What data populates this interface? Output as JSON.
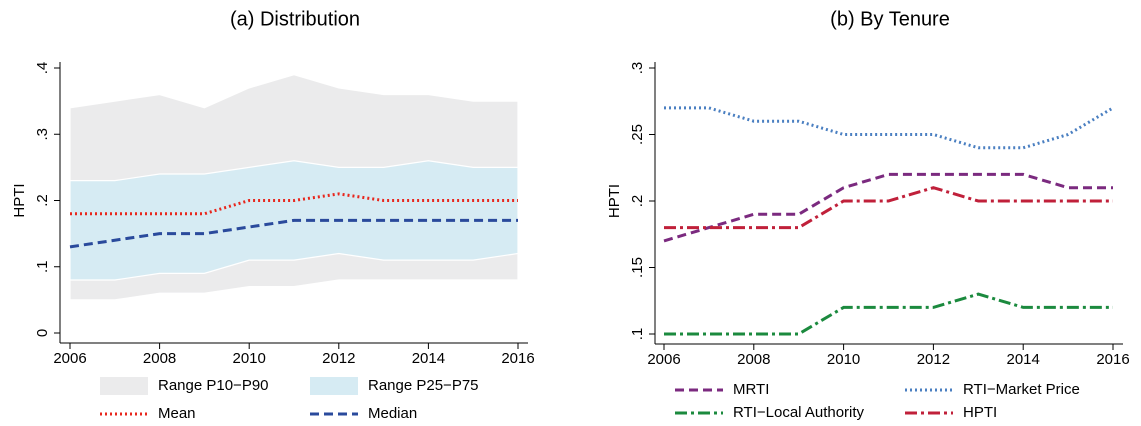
{
  "chart_data": [
    {
      "type": "area-line",
      "title": "(a) Distribution",
      "ylabel": "HPTI",
      "x": [
        2006,
        2007,
        2008,
        2009,
        2010,
        2011,
        2012,
        2013,
        2014,
        2015,
        2016
      ],
      "xlim": [
        2006,
        2016
      ],
      "xticks": [
        2006,
        2008,
        2010,
        2012,
        2014,
        2016
      ],
      "ylim": [
        0,
        0.4
      ],
      "yticks": [
        0,
        {
          "value": 0.1,
          "label": ".1"
        },
        {
          "value": 0.2,
          "label": ".2"
        },
        {
          "value": 0.3,
          "label": ".3"
        },
        {
          "value": 0.4,
          "label": ".4"
        }
      ],
      "series": [
        {
          "name": "Range P10−P90",
          "color": "#ebebec",
          "low": [
            0.05,
            0.05,
            0.06,
            0.06,
            0.07,
            0.07,
            0.08,
            0.08,
            0.08,
            0.08,
            0.08
          ],
          "high": [
            0.34,
            0.35,
            0.36,
            0.34,
            0.37,
            0.39,
            0.37,
            0.36,
            0.36,
            0.35,
            0.35
          ]
        },
        {
          "name": "Range P25−P75",
          "color": "#d6ebf3",
          "low": [
            0.08,
            0.08,
            0.09,
            0.09,
            0.11,
            0.11,
            0.12,
            0.11,
            0.11,
            0.11,
            0.12
          ],
          "high": [
            0.23,
            0.23,
            0.24,
            0.24,
            0.25,
            0.26,
            0.25,
            0.25,
            0.26,
            0.25,
            0.25
          ]
        },
        {
          "name": "Mean",
          "color": "#e8261c",
          "style": "dotted",
          "values": [
            0.18,
            0.18,
            0.18,
            0.18,
            0.2,
            0.2,
            0.21,
            0.2,
            0.2,
            0.2,
            0.2
          ]
        },
        {
          "name": "Median",
          "color": "#2a4a9c",
          "style": "dashed",
          "values": [
            0.13,
            0.14,
            0.15,
            0.15,
            0.16,
            0.17,
            0.17,
            0.17,
            0.17,
            0.17,
            0.17
          ]
        }
      ]
    },
    {
      "type": "line",
      "title": "(b) By Tenure",
      "ylabel": "HPTI",
      "x": [
        2006,
        2007,
        2008,
        2009,
        2010,
        2011,
        2012,
        2013,
        2014,
        2015,
        2016
      ],
      "xlim": [
        2006,
        2016
      ],
      "xticks": [
        2006,
        2008,
        2010,
        2012,
        2014,
        2016
      ],
      "ylim": [
        0.1,
        0.3
      ],
      "yticks": [
        {
          "value": 0.1,
          "label": ".1"
        },
        {
          "value": 0.15,
          "label": ".15"
        },
        {
          "value": 0.2,
          "label": ".2"
        },
        {
          "value": 0.25,
          "label": ".25"
        },
        {
          "value": 0.3,
          "label": ".3"
        }
      ],
      "series": [
        {
          "name": "MRTI",
          "color": "#7b2a7f",
          "style": "dashed",
          "values": [
            0.17,
            0.18,
            0.19,
            0.19,
            0.21,
            0.22,
            0.22,
            0.22,
            0.22,
            0.21,
            0.21
          ]
        },
        {
          "name": "RTI−Market Price",
          "color": "#4a7fc1",
          "style": "dotted",
          "values": [
            0.27,
            0.27,
            0.26,
            0.26,
            0.25,
            0.25,
            0.25,
            0.24,
            0.24,
            0.25,
            0.27
          ]
        },
        {
          "name": "RTI−Local Authority",
          "color": "#1b8a3e",
          "style": "dashdot",
          "values": [
            0.1,
            0.1,
            0.1,
            0.1,
            0.12,
            0.12,
            0.12,
            0.13,
            0.12,
            0.12,
            0.12
          ]
        },
        {
          "name": "HPTI",
          "color": "#c0203a",
          "style": "dashdot",
          "values": [
            0.18,
            0.18,
            0.18,
            0.18,
            0.2,
            0.2,
            0.21,
            0.2,
            0.2,
            0.2,
            0.2
          ]
        }
      ]
    }
  ]
}
